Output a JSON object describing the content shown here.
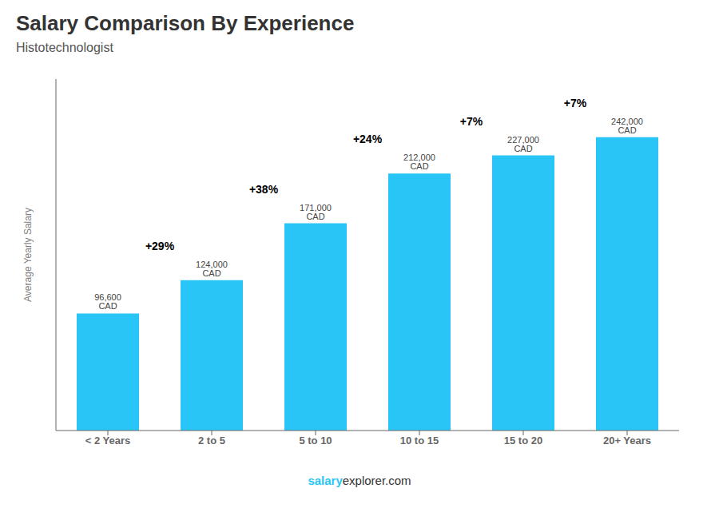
{
  "chart_data": {
    "type": "bar",
    "title": "Salary Comparison By Experience",
    "subtitle": "Histotechnologist",
    "categories": [
      "< 2 Years",
      "2 to 5",
      "5 to 10",
      "10 to 15",
      "15 to 20",
      "20+ Years"
    ],
    "values": [
      96600,
      124000,
      171000,
      212000,
      227000,
      242000
    ],
    "value_labels": [
      "96,600 CAD",
      "124,000 CAD",
      "171,000 CAD",
      "212,000 CAD",
      "227,000 CAD",
      "242,000 CAD"
    ],
    "data_labels": true,
    "annotations": [
      "+29%",
      "+38%",
      "+24%",
      "+7%",
      "+7%"
    ],
    "color": "#29C5F6",
    "ylabel": "Average Yearly Salary",
    "ylim": [
      0,
      290000
    ],
    "tick_labels": "x",
    "grid": false,
    "watermark": [
      "salary",
      "explorer.com"
    ]
  }
}
